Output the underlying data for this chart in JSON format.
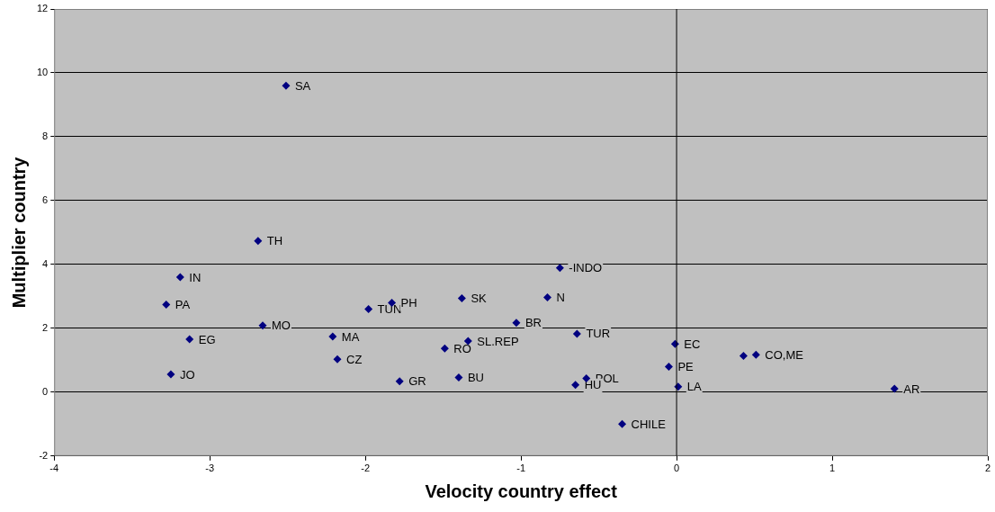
{
  "chart_data": {
    "type": "scatter",
    "xlabel": "Velocity country effect",
    "ylabel": "Multiplier country",
    "xlim": [
      -4,
      2
    ],
    "xticks": [
      -4,
      -3,
      -2,
      -1,
      0,
      1,
      2
    ],
    "ylim": [
      -2,
      12
    ],
    "yticks": [
      -2,
      0,
      2,
      4,
      6,
      8,
      10,
      12
    ],
    "grid": "y",
    "marker": "diamond",
    "ref_lines": [
      {
        "axis": "x",
        "value": 0,
        "color": "#000000"
      }
    ],
    "series": [
      {
        "color": "#000080",
        "x": [
          -2.51,
          -2.69,
          -3.19,
          -3.28,
          -2.66,
          -3.13,
          -3.25,
          -2.21,
          -2.18,
          -1.98,
          -1.83,
          -1.38,
          -1.78,
          -1.4,
          -1.49,
          -1.34,
          -0.75,
          -0.83,
          -1.03,
          -0.64,
          -0.01,
          0.43,
          0.51,
          -0.05,
          -0.58,
          -0.65,
          0.01,
          1.4,
          -0.35
        ],
        "values": [
          9.6,
          4.74,
          3.6,
          2.74,
          2.09,
          1.66,
          0.56,
          1.74,
          1.03,
          2.6,
          2.8,
          2.94,
          0.34,
          0.46,
          1.37,
          1.6,
          3.89,
          2.97,
          2.17,
          1.83,
          1.51,
          1.14,
          1.17,
          0.8,
          0.43,
          0.23,
          0.17,
          0.11,
          -1.0
        ]
      }
    ],
    "annotations": [
      {
        "text": "SA",
        "x": -2.51,
        "y": 9.6
      },
      {
        "text": "TH",
        "x": -2.69,
        "y": 4.74
      },
      {
        "text": "IN",
        "x": -3.19,
        "y": 3.6
      },
      {
        "text": "PA",
        "x": -3.28,
        "y": 2.74
      },
      {
        "text": "MO",
        "x": -2.66,
        "y": 2.09
      },
      {
        "text": "EG",
        "x": -3.13,
        "y": 1.66
      },
      {
        "text": "JO",
        "x": -3.25,
        "y": 0.56
      },
      {
        "text": "MA",
        "x": -2.21,
        "y": 1.74
      },
      {
        "text": "CZ",
        "x": -2.18,
        "y": 1.03
      },
      {
        "text": "TUN",
        "x": -1.98,
        "y": 2.6
      },
      {
        "text": "PH",
        "x": -1.83,
        "y": 2.8
      },
      {
        "text": "SK",
        "x": -1.38,
        "y": 2.94
      },
      {
        "text": "GR",
        "x": -1.78,
        "y": 0.34
      },
      {
        "text": "BU",
        "x": -1.4,
        "y": 0.46
      },
      {
        "text": "RO",
        "x": -1.49,
        "y": 1.37
      },
      {
        "text": "SL.REP",
        "x": -1.34,
        "y": 1.6
      },
      {
        "text": "-INDO",
        "x": -0.75,
        "y": 3.89
      },
      {
        "text": "N",
        "x": -0.83,
        "y": 2.97
      },
      {
        "text": "BR",
        "x": -1.03,
        "y": 2.17
      },
      {
        "text": "TUR",
        "x": -0.64,
        "y": 1.83
      },
      {
        "text": "EC",
        "x": -0.01,
        "y": 1.51
      },
      {
        "text": "CO,ME",
        "x": 0.51,
        "y": 1.17
      },
      {
        "text": "PE",
        "x": -0.05,
        "y": 0.8
      },
      {
        "text": "POL",
        "x": -0.58,
        "y": 0.43
      },
      {
        "text": "HU",
        "x": -0.65,
        "y": 0.23
      },
      {
        "text": "LA",
        "x": 0.01,
        "y": 0.17
      },
      {
        "text": "AR",
        "x": 1.4,
        "y": 0.11
      },
      {
        "text": "CHILE",
        "x": -0.35,
        "y": -1.0
      }
    ]
  }
}
